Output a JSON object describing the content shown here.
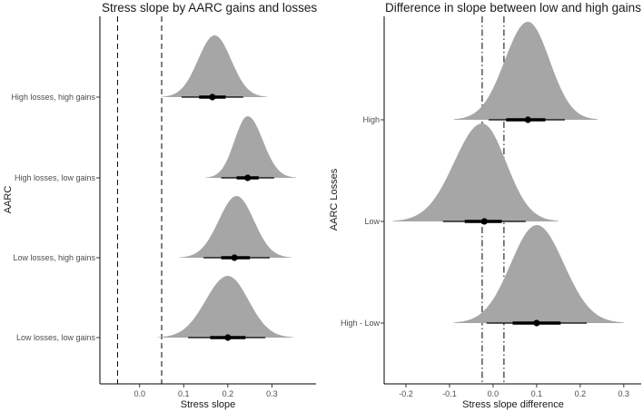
{
  "chart_data": [
    {
      "type": "halfeye",
      "title": "Stress slope by AARC gains and losses",
      "xlabel": "Stress slope",
      "ylabel": "AARC",
      "xlim": [
        -0.09,
        0.4
      ],
      "xticks": [
        0.0,
        0.1,
        0.2,
        0.3
      ],
      "xtick_labels": [
        "0.0",
        "0.1",
        "0.2",
        "0.3"
      ],
      "reference_lines": [
        {
          "x": -0.05,
          "style": "dashed"
        },
        {
          "x": 0.05,
          "style": "dashed"
        }
      ],
      "fill_color": "#a6a6a6",
      "interval_color": "#000000",
      "categories": [
        "High losses, high gains",
        "High losses, low gains",
        "Low losses, high gains",
        "Low losses, low gains"
      ],
      "series": [
        {
          "name": "High losses, high gains",
          "median": 0.165,
          "ci66": [
            0.135,
            0.195
          ],
          "ci95": [
            0.095,
            0.235
          ],
          "density_min": 0.05,
          "density_max": 0.29,
          "peak": 0.17
        },
        {
          "name": "High losses, low gains",
          "median": 0.245,
          "ci66": [
            0.22,
            0.27
          ],
          "ci95": [
            0.185,
            0.305
          ],
          "density_min": 0.15,
          "density_max": 0.355,
          "peak": 0.245
        },
        {
          "name": "Low losses, high gains",
          "median": 0.215,
          "ci66": [
            0.185,
            0.25
          ],
          "ci95": [
            0.145,
            0.295
          ],
          "density_min": 0.09,
          "density_max": 0.345,
          "peak": 0.22
        },
        {
          "name": "Low losses, low gains",
          "median": 0.2,
          "ci66": [
            0.16,
            0.24
          ],
          "ci95": [
            0.11,
            0.285
          ],
          "density_min": 0.04,
          "density_max": 0.35,
          "peak": 0.2
        }
      ]
    },
    {
      "type": "halfeye",
      "title": "Difference in slope between low and high gains",
      "xlabel": "Stress slope difference",
      "ylabel": "AARC Losses",
      "xlim": [
        -0.25,
        0.34
      ],
      "xticks": [
        -0.2,
        -0.1,
        0.0,
        0.1,
        0.2,
        0.3
      ],
      "xtick_labels": [
        "-0.2",
        "-0.1",
        "0.0",
        "0.1",
        "0.2",
        "0.3"
      ],
      "reference_lines": [
        {
          "x": -0.025,
          "style": "dotdash"
        },
        {
          "x": 0.025,
          "style": "dotdash"
        }
      ],
      "fill_color": "#a6a6a6",
      "interval_color": "#000000",
      "categories": [
        "High",
        "Low",
        "High - Low"
      ],
      "series": [
        {
          "name": "High",
          "median": 0.08,
          "ci66": [
            0.03,
            0.12
          ],
          "ci95": [
            -0.01,
            0.165
          ],
          "density_min": -0.09,
          "density_max": 0.24,
          "peak": 0.08
        },
        {
          "name": "Low",
          "median": -0.02,
          "ci66": [
            -0.065,
            0.02
          ],
          "ci95": [
            -0.115,
            0.075
          ],
          "density_min": -0.23,
          "density_max": 0.15,
          "peak": -0.025
        },
        {
          "name": "High - Low",
          "median": 0.1,
          "ci66": [
            0.045,
            0.155
          ],
          "ci95": [
            -0.015,
            0.215
          ],
          "density_min": -0.09,
          "density_max": 0.3,
          "peak": 0.1
        }
      ]
    }
  ]
}
